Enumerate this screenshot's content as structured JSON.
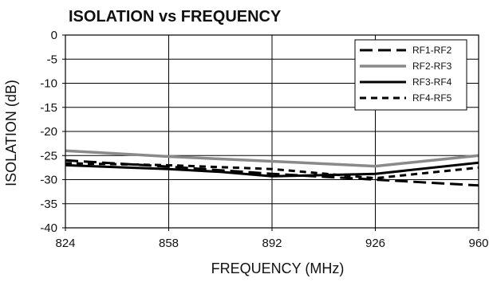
{
  "chart_data": {
    "type": "line",
    "title": "ISOLATION vs FREQUENCY",
    "xlabel": "FREQUENCY (MHz)",
    "ylabel": "ISOLATION (dB)",
    "xlim": [
      824,
      960
    ],
    "ylim": [
      -40,
      0
    ],
    "x_ticks": [
      "824",
      "858",
      "892",
      "926",
      "960"
    ],
    "y_ticks": [
      "0",
      "-5",
      "-10",
      "-15",
      "-20",
      "-25",
      "-30",
      "-35",
      "-40"
    ],
    "grid": true,
    "legend_position": "top-right",
    "series": [
      {
        "name": "RF1-RF2",
        "color": "#000000",
        "style": "long-dash",
        "points": [
          [
            824,
            -26
          ],
          [
            858,
            -27.3
          ],
          [
            892,
            -28.8
          ],
          [
            926,
            -30
          ],
          [
            960,
            -31.2
          ]
        ]
      },
      {
        "name": "RF2-RF3",
        "color": "#8a8a8a",
        "style": "solid",
        "points": [
          [
            824,
            -24
          ],
          [
            858,
            -25.2
          ],
          [
            892,
            -26.2
          ],
          [
            926,
            -27.2
          ],
          [
            960,
            -25
          ]
        ]
      },
      {
        "name": "RF3-RF4",
        "color": "#000000",
        "style": "solid",
        "points": [
          [
            824,
            -27
          ],
          [
            858,
            -27.8
          ],
          [
            875,
            -28.4
          ],
          [
            892,
            -29.3
          ],
          [
            926,
            -28.8
          ],
          [
            960,
            -26.5
          ]
        ]
      },
      {
        "name": "RF4-RF5",
        "color": "#000000",
        "style": "short-dash",
        "points": [
          [
            824,
            -26.6
          ],
          [
            858,
            -27
          ],
          [
            892,
            -27.8
          ],
          [
            926,
            -29.7
          ],
          [
            960,
            -27.5
          ]
        ]
      }
    ]
  }
}
